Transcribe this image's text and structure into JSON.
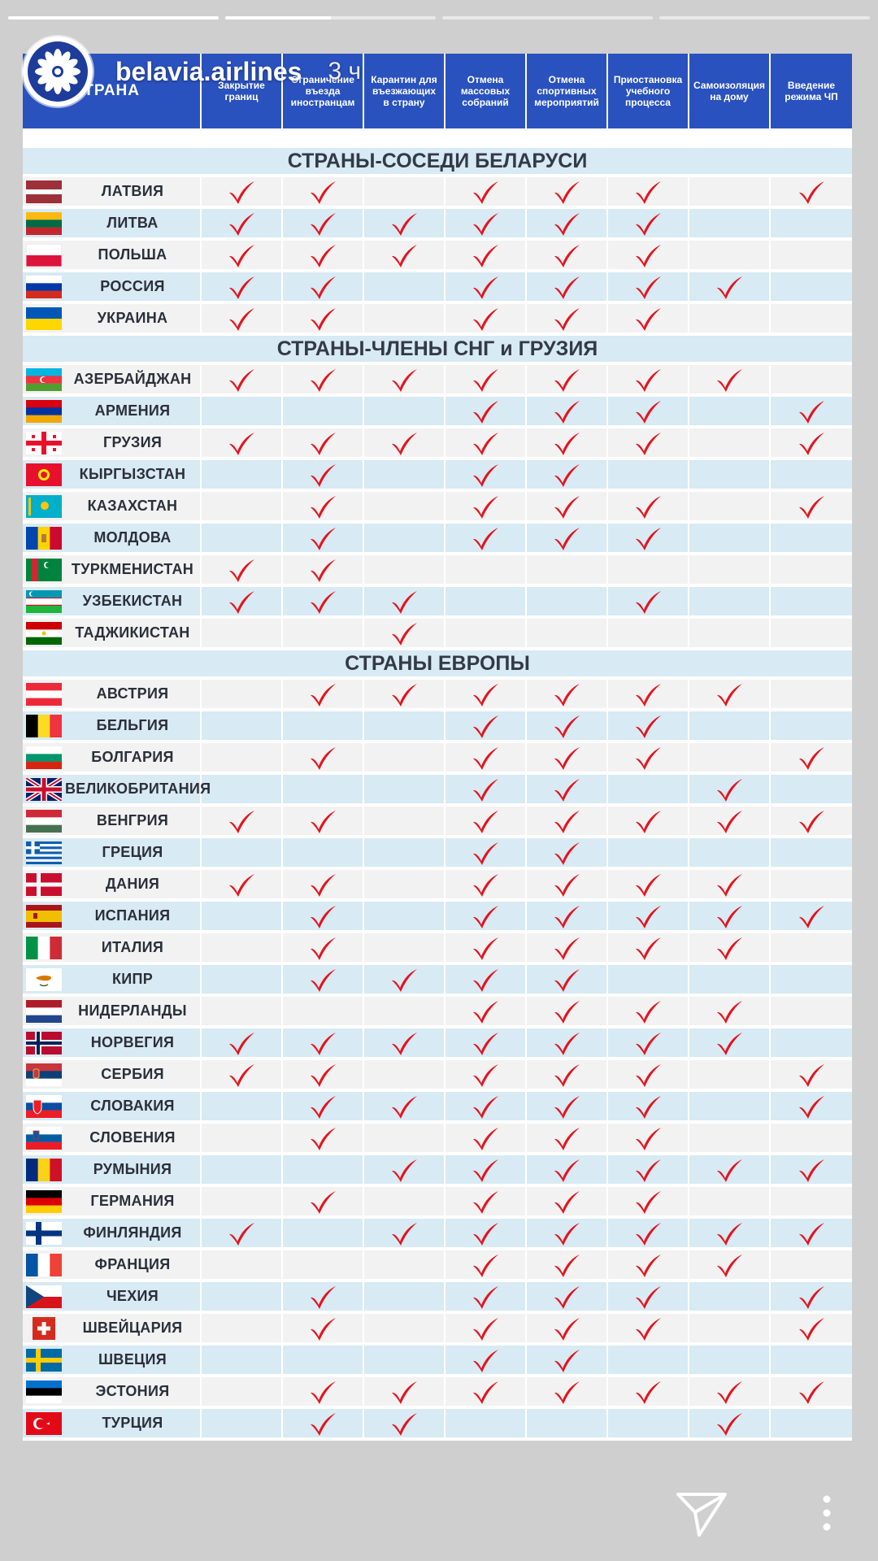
{
  "story": {
    "account": "belavia.airlines",
    "time": "3 ч",
    "progress": [
      1,
      0.5,
      0,
      0
    ]
  },
  "table": {
    "header_country": "СТРАНА",
    "columns": [
      "Закрытие\nграниц",
      "Ограничение\nвъезда\nиностранцам",
      "Карантин для\nвъезжающих\nв страну",
      "Отмена\nмассовых\nсобраний",
      "Отмена\nспортивных\nмероприятий",
      "Приостановка\nучебного\nпроцесса",
      "Самоизоляция\nна дому",
      "Введение\nрежима ЧП"
    ],
    "accent_color": "#2a52be",
    "check_color": "#e4141e",
    "sections": [
      {
        "title": "СТРАНЫ-СОСЕДИ БЕЛАРУСИ",
        "rows": [
          {
            "name": "ЛАТВИЯ",
            "flag": "latvia-flag",
            "checks": [
              1,
              1,
              0,
              1,
              1,
              1,
              0,
              1
            ]
          },
          {
            "name": "ЛИТВА",
            "flag": "lithuania-flag",
            "checks": [
              1,
              1,
              1,
              1,
              1,
              1,
              0,
              0
            ]
          },
          {
            "name": "ПОЛЬША",
            "flag": "poland-flag",
            "checks": [
              1,
              1,
              1,
              1,
              1,
              1,
              0,
              0
            ]
          },
          {
            "name": "РОССИЯ",
            "flag": "russia-flag",
            "checks": [
              1,
              1,
              0,
              1,
              1,
              1,
              1,
              0
            ]
          },
          {
            "name": "УКРАИНА",
            "flag": "ukraine-flag",
            "checks": [
              1,
              1,
              0,
              1,
              1,
              1,
              0,
              0
            ]
          }
        ]
      },
      {
        "title": "СТРАНЫ-ЧЛЕНЫ СНГ и ГРУЗИЯ",
        "rows": [
          {
            "name": "АЗЕРБАЙДЖАН",
            "flag": "azerbaijan-flag",
            "checks": [
              1,
              1,
              1,
              1,
              1,
              1,
              1,
              0
            ]
          },
          {
            "name": "АРМЕНИЯ",
            "flag": "armenia-flag",
            "checks": [
              0,
              0,
              0,
              1,
              1,
              1,
              0,
              1
            ]
          },
          {
            "name": "ГРУЗИЯ",
            "flag": "georgia-flag",
            "checks": [
              1,
              1,
              1,
              1,
              1,
              1,
              0,
              1
            ]
          },
          {
            "name": "КЫРГЫЗСТАН",
            "flag": "kyrgyzstan-flag",
            "checks": [
              0,
              1,
              0,
              1,
              1,
              0,
              0,
              0
            ]
          },
          {
            "name": "КАЗАХСТАН",
            "flag": "kazakhstan-flag",
            "checks": [
              0,
              1,
              0,
              1,
              1,
              1,
              0,
              1
            ]
          },
          {
            "name": "МОЛДОВА",
            "flag": "moldova-flag",
            "checks": [
              0,
              1,
              0,
              1,
              1,
              1,
              0,
              0
            ]
          },
          {
            "name": "ТУРКМЕНИСТАН",
            "flag": "turkmenistan-flag",
            "checks": [
              1,
              1,
              0,
              0,
              0,
              0,
              0,
              0
            ]
          },
          {
            "name": "УЗБЕКИСТАН",
            "flag": "uzbekistan-flag",
            "checks": [
              1,
              1,
              1,
              0,
              0,
              1,
              0,
              0
            ]
          },
          {
            "name": "ТАДЖИКИСТАН",
            "flag": "tajikistan-flag",
            "checks": [
              0,
              0,
              1,
              0,
              0,
              0,
              0,
              0
            ]
          }
        ]
      },
      {
        "title": "СТРАНЫ ЕВРОПЫ",
        "rows": [
          {
            "name": "АВСТРИЯ",
            "flag": "austria-flag",
            "checks": [
              0,
              1,
              1,
              1,
              1,
              1,
              1,
              0
            ]
          },
          {
            "name": "БЕЛЬГИЯ",
            "flag": "belgium-flag",
            "checks": [
              0,
              0,
              0,
              1,
              1,
              1,
              0,
              0
            ]
          },
          {
            "name": "БОЛГАРИЯ",
            "flag": "bulgaria-flag",
            "checks": [
              0,
              1,
              0,
              1,
              1,
              1,
              0,
              1
            ]
          },
          {
            "name": "ВЕЛИКОБРИТАНИЯ",
            "flag": "uk-flag",
            "checks": [
              0,
              0,
              0,
              1,
              1,
              0,
              1,
              0
            ]
          },
          {
            "name": "ВЕНГРИЯ",
            "flag": "hungary-flag",
            "checks": [
              1,
              1,
              0,
              1,
              1,
              1,
              1,
              1
            ]
          },
          {
            "name": "ГРЕЦИЯ",
            "flag": "greece-flag",
            "checks": [
              0,
              0,
              0,
              1,
              1,
              0,
              0,
              0
            ]
          },
          {
            "name": "ДАНИЯ",
            "flag": "denmark-flag",
            "checks": [
              1,
              1,
              0,
              1,
              1,
              1,
              1,
              0
            ]
          },
          {
            "name": "ИСПАНИЯ",
            "flag": "spain-flag",
            "checks": [
              0,
              1,
              0,
              1,
              1,
              1,
              1,
              1
            ]
          },
          {
            "name": "ИТАЛИЯ",
            "flag": "italy-flag",
            "checks": [
              0,
              1,
              0,
              1,
              1,
              1,
              1,
              0
            ]
          },
          {
            "name": "КИПР",
            "flag": "cyprus-flag",
            "checks": [
              0,
              1,
              1,
              1,
              1,
              0,
              0,
              0
            ]
          },
          {
            "name": "НИДЕРЛАНДЫ",
            "flag": "netherlands-flag",
            "checks": [
              0,
              0,
              0,
              1,
              1,
              1,
              1,
              0
            ]
          },
          {
            "name": "НОРВЕГИЯ",
            "flag": "norway-flag",
            "checks": [
              1,
              1,
              1,
              1,
              1,
              1,
              1,
              0
            ]
          },
          {
            "name": "СЕРБИЯ",
            "flag": "serbia-flag",
            "checks": [
              1,
              1,
              0,
              1,
              1,
              1,
              0,
              1
            ]
          },
          {
            "name": "СЛОВАКИЯ",
            "flag": "slovakia-flag",
            "checks": [
              0,
              1,
              1,
              1,
              1,
              1,
              0,
              1
            ]
          },
          {
            "name": "СЛОВЕНИЯ",
            "flag": "slovenia-flag",
            "checks": [
              0,
              1,
              0,
              1,
              1,
              1,
              0,
              0
            ]
          },
          {
            "name": "РУМЫНИЯ",
            "flag": "romania-flag",
            "checks": [
              0,
              0,
              1,
              1,
              1,
              1,
              1,
              1
            ]
          },
          {
            "name": "ГЕРМАНИЯ",
            "flag": "germany-flag",
            "checks": [
              0,
              1,
              0,
              1,
              1,
              1,
              0,
              0
            ]
          },
          {
            "name": "ФИНЛЯНДИЯ",
            "flag": "finland-flag",
            "checks": [
              1,
              0,
              1,
              1,
              1,
              1,
              1,
              1
            ]
          },
          {
            "name": "ФРАНЦИЯ",
            "flag": "france-flag",
            "checks": [
              0,
              0,
              0,
              1,
              1,
              1,
              1,
              0
            ]
          },
          {
            "name": "ЧЕХИЯ",
            "flag": "czech-flag",
            "checks": [
              0,
              1,
              0,
              1,
              1,
              1,
              0,
              1
            ]
          },
          {
            "name": "ШВЕЙЦАРИЯ",
            "flag": "switzerland-flag",
            "checks": [
              0,
              1,
              0,
              1,
              1,
              1,
              0,
              1
            ]
          },
          {
            "name": "ШВЕЦИЯ",
            "flag": "sweden-flag",
            "checks": [
              0,
              0,
              0,
              1,
              1,
              0,
              0,
              0
            ]
          },
          {
            "name": "ЭСТОНИЯ",
            "flag": "estonia-flag",
            "checks": [
              0,
              1,
              1,
              1,
              1,
              1,
              1,
              1
            ]
          },
          {
            "name": "ТУРЦИЯ",
            "flag": "turkey-flag",
            "checks": [
              0,
              1,
              1,
              0,
              0,
              0,
              1,
              0
            ]
          }
        ]
      }
    ]
  },
  "controls": {
    "send_icon": "send-icon",
    "more_icon": "more-vertical-icon"
  }
}
